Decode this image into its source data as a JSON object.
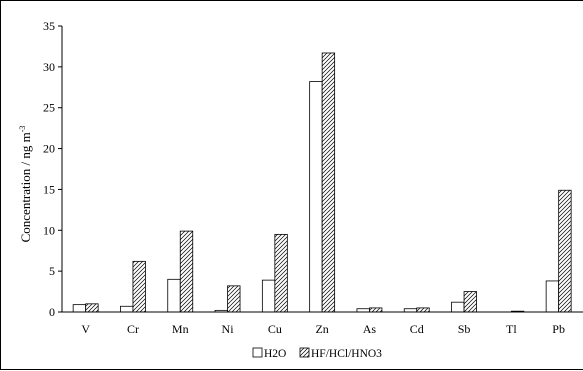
{
  "chart_data": {
    "type": "bar",
    "categories": [
      "V",
      "Cr",
      "Mn",
      "Ni",
      "Cu",
      "Zn",
      "As",
      "Cd",
      "Sb",
      "Tl",
      "Pb"
    ],
    "series": [
      {
        "name": "H2O",
        "values": [
          0.9,
          0.7,
          4.0,
          0.2,
          3.9,
          28.2,
          0.4,
          0.4,
          1.2,
          0.0,
          3.8
        ],
        "fill": "#ffffff",
        "pattern": "none"
      },
      {
        "name": "HF/HCl/HNO3",
        "values": [
          1.0,
          6.2,
          9.9,
          3.2,
          9.5,
          31.7,
          0.5,
          0.5,
          2.5,
          0.1,
          14.9
        ],
        "fill": "#ffffff",
        "pattern": "diagonal-hatch"
      }
    ],
    "ylabel_main": "Concentration / ng m",
    "ylabel_sup": "-3",
    "xlabel": "",
    "title": "",
    "ylim": [
      0,
      35
    ],
    "yticks": [
      0,
      5,
      10,
      15,
      20,
      25,
      30,
      35
    ],
    "grid": false,
    "legend": "bottom-center",
    "colors": {
      "stroke": "#000000",
      "background": "#ffffff"
    }
  }
}
